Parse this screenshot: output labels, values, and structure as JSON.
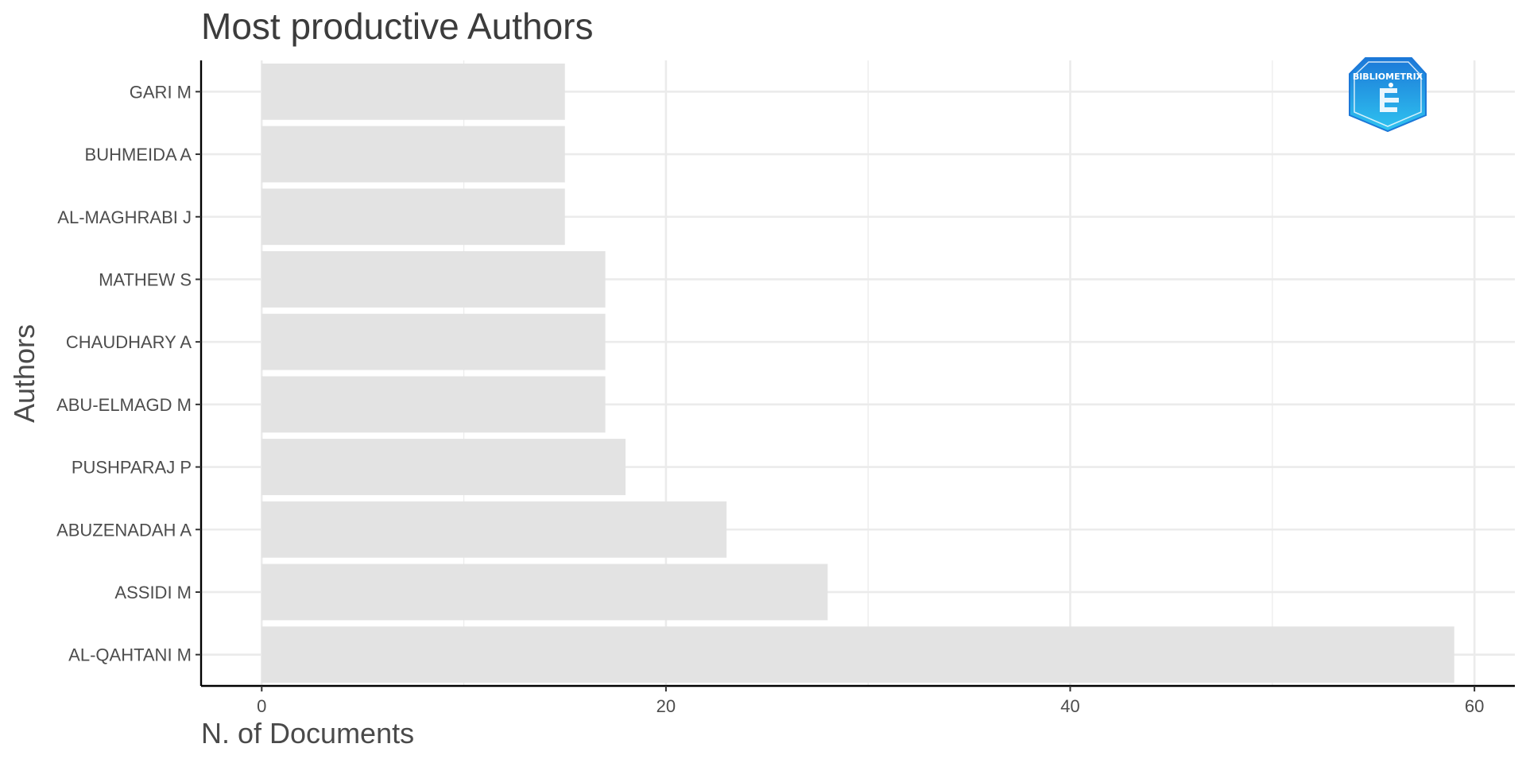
{
  "chart_data": {
    "type": "bar",
    "orientation": "horizontal",
    "title": "Most productive Authors",
    "xlabel": "N. of Documents",
    "ylabel": "Authors",
    "categories": [
      "AL-QAHTANI M",
      "ASSIDI M",
      "ABUZENADAH A",
      "PUSHPARAJ P",
      "ABU-ELMAGD M",
      "CHAUDHARY A",
      "MATHEW S",
      "AL-MAGHRABI J",
      "BUHMEIDA A",
      "GARI M"
    ],
    "values": [
      59,
      28,
      23,
      18,
      17,
      17,
      17,
      15,
      15,
      15
    ],
    "xlim": [
      -3,
      62
    ],
    "xticks": [
      0,
      20,
      40,
      60
    ],
    "grid": true,
    "legend": "none",
    "bar_color": "#e3e3e3",
    "grid_color": "#ebebeb",
    "axis_color": "#000000",
    "logo_text": "BIBLIOMETRIX",
    "logo_colors": [
      "#1c78d8",
      "#2fc4f0"
    ]
  }
}
